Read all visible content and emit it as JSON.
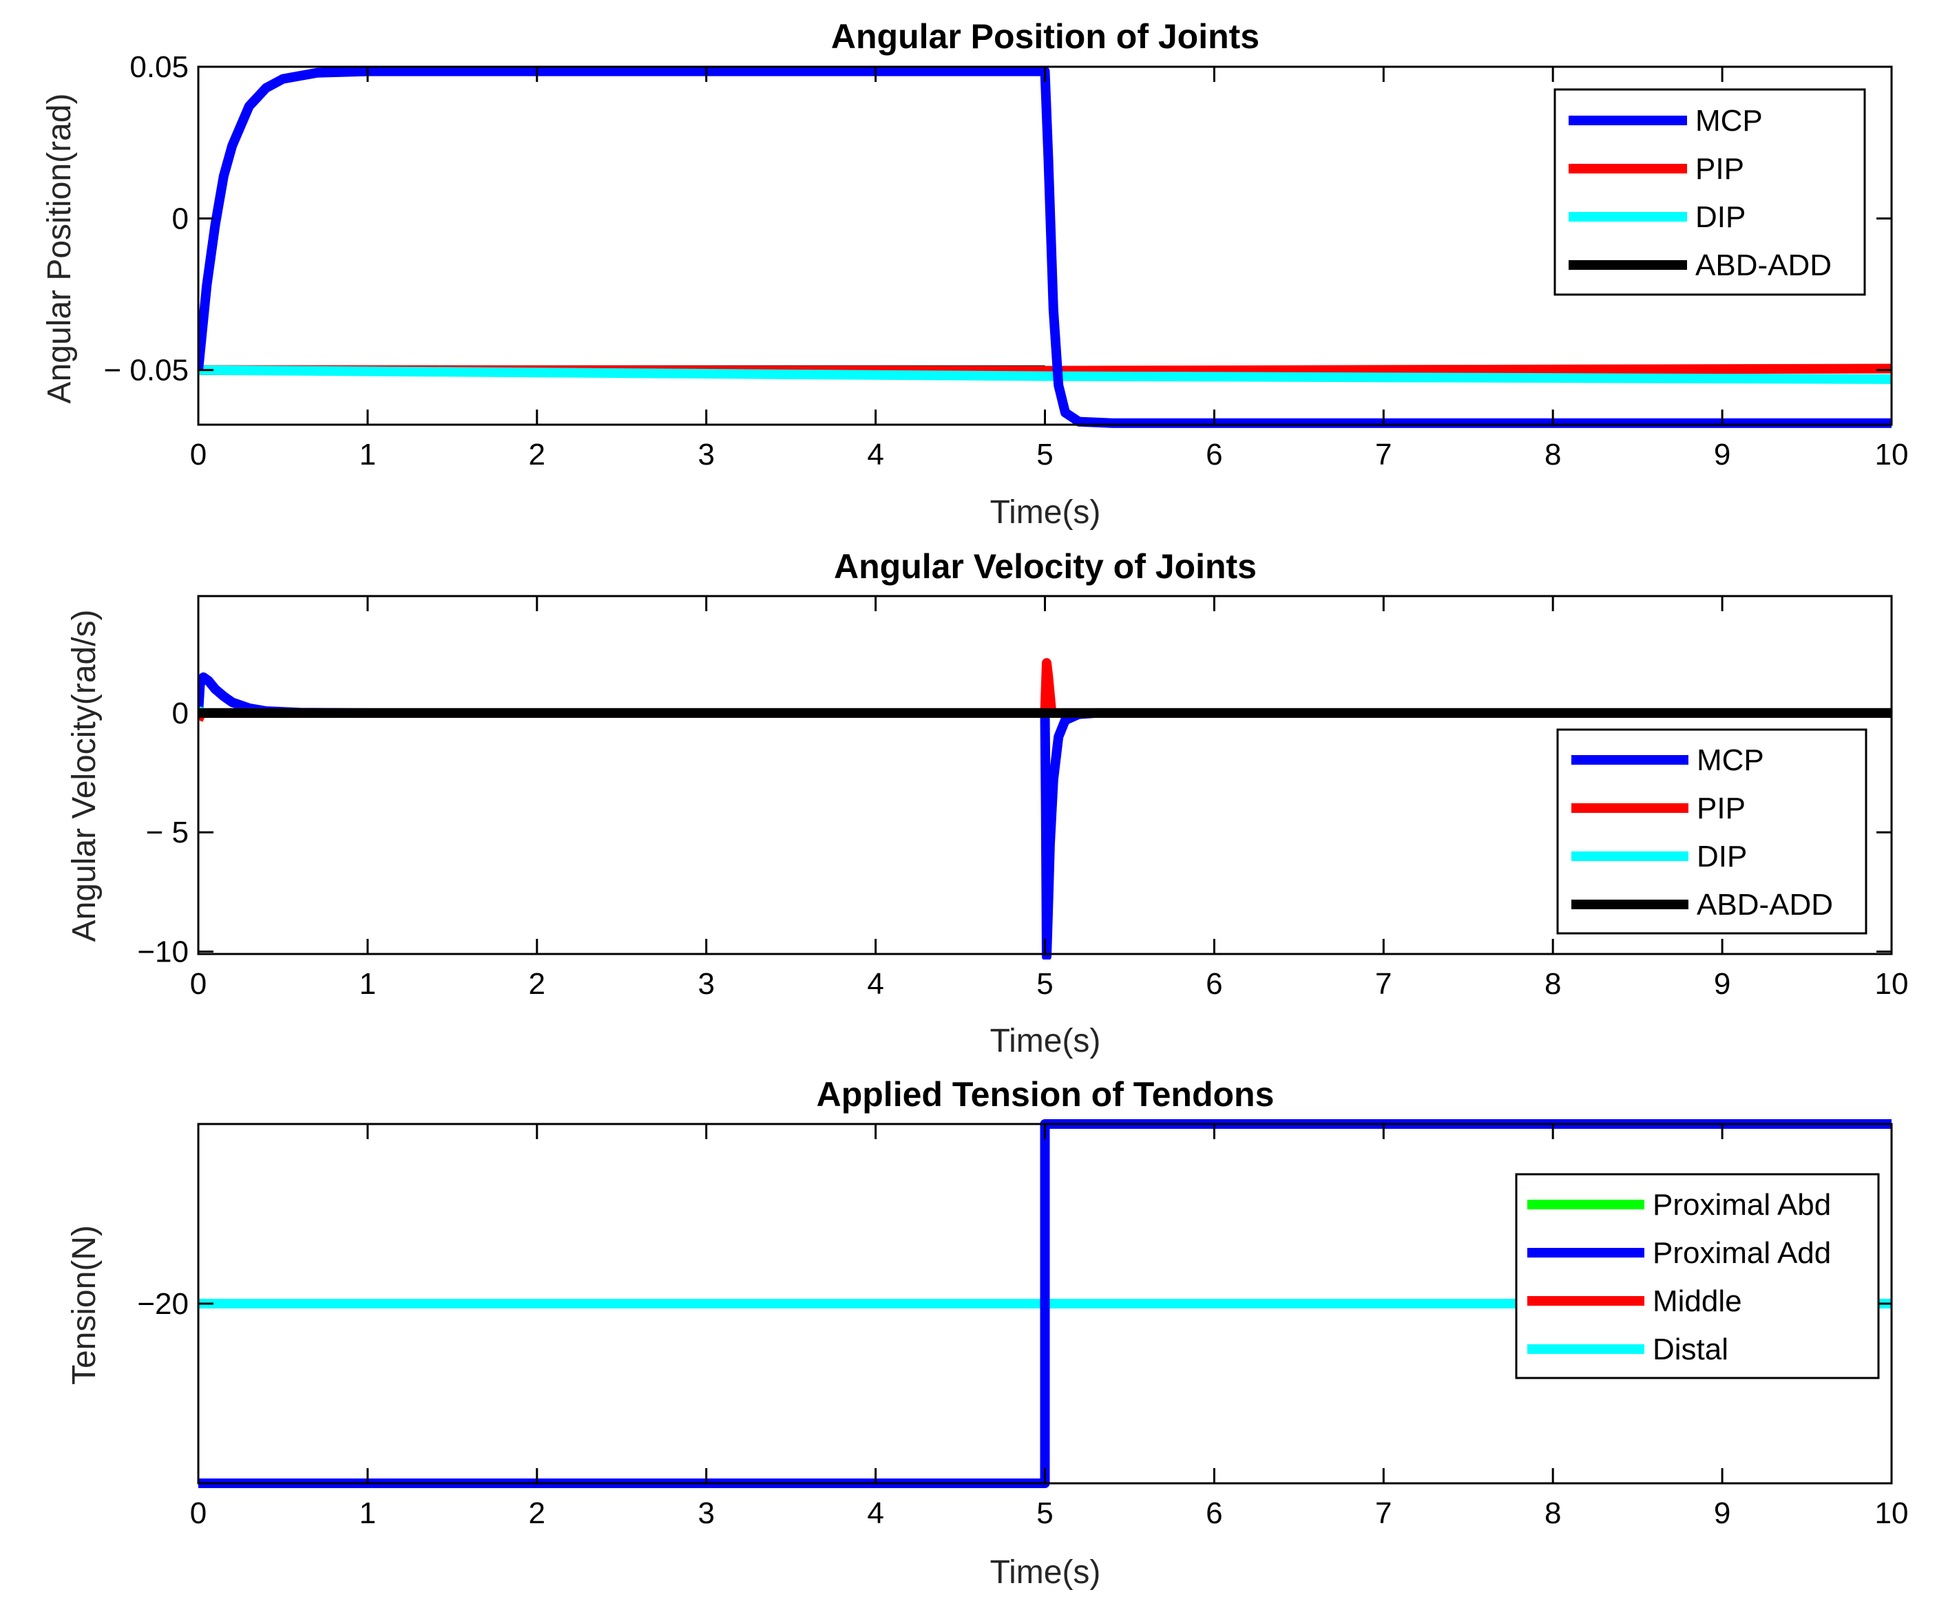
{
  "chart_data": [
    {
      "type": "line",
      "title": "Angular Position of Joints",
      "xlabel": "Time(s)",
      "ylabel": "Angular Position(rad)",
      "xlim": [
        0,
        10
      ],
      "ylim": [
        -0.068,
        0.05
      ],
      "xticks": [
        0,
        1,
        2,
        3,
        4,
        5,
        6,
        7,
        8,
        9,
        10
      ],
      "xtick_labels": [
        "0",
        "1",
        "2",
        "3",
        "4",
        "5",
        "6",
        "7",
        "8",
        "9",
        "10"
      ],
      "yticks": [
        0.05,
        0,
        -0.05
      ],
      "ytick_labels": [
        "0.05",
        "0",
        "− 0.05"
      ],
      "grid": false,
      "legend_position": "top-right",
      "legend": [
        "MCP",
        "PIP",
        "DIP",
        "ABD-ADD"
      ],
      "series": [
        {
          "name": "MCP",
          "color": "#0000ff",
          "x": [
            0,
            0.05,
            0.1,
            0.15,
            0.2,
            0.3,
            0.4,
            0.5,
            0.7,
            1.0,
            5.0,
            5.02,
            5.05,
            5.08,
            5.12,
            5.2,
            5.4,
            10
          ],
          "y": [
            -0.05,
            -0.022,
            -0.002,
            0.014,
            0.024,
            0.037,
            0.043,
            0.046,
            0.048,
            0.0485,
            0.0485,
            0.02,
            -0.03,
            -0.055,
            -0.064,
            -0.067,
            -0.0675,
            -0.0675
          ]
        },
        {
          "name": "PIP",
          "color": "#ff0000",
          "x": [
            0,
            5.0,
            10
          ],
          "y": [
            -0.05,
            -0.0502,
            -0.0495
          ]
        },
        {
          "name": "DIP",
          "color": "#00ffff",
          "x": [
            0,
            5.0,
            10
          ],
          "y": [
            -0.05,
            -0.052,
            -0.053
          ]
        },
        {
          "name": "ABD-ADD",
          "color": "#000000",
          "x": [
            0,
            5.0
          ],
          "y": [
            -0.05,
            -0.05
          ]
        }
      ]
    },
    {
      "type": "line",
      "title": "Angular Velocity of Joints",
      "xlabel": "Time(s)",
      "ylabel": "Angular Velocity(rad/s)",
      "xlim": [
        0,
        10
      ],
      "ylim": [
        -10.1,
        4.9
      ],
      "xticks": [
        0,
        1,
        2,
        3,
        4,
        5,
        6,
        7,
        8,
        9,
        10
      ],
      "xtick_labels": [
        "0",
        "1",
        "2",
        "3",
        "4",
        "5",
        "6",
        "7",
        "8",
        "9",
        "10"
      ],
      "yticks": [
        0,
        -5,
        -10
      ],
      "ytick_labels": [
        "0",
        "− 5",
        "−10"
      ],
      "grid": false,
      "legend_position": "bottom-right",
      "legend": [
        "MCP",
        "PIP",
        "DIP",
        "ABD-ADD"
      ],
      "series": [
        {
          "name": "MCP",
          "color": "#0000ff",
          "x": [
            0,
            0.01,
            0.03,
            0.06,
            0.1,
            0.15,
            0.2,
            0.3,
            0.4,
            0.6,
            1.0,
            5.0,
            5.005,
            5.01,
            5.02,
            5.03,
            5.05,
            5.08,
            5.12,
            5.2,
            5.3,
            10
          ],
          "y": [
            0,
            1.2,
            1.5,
            1.35,
            1.0,
            0.7,
            0.45,
            0.2,
            0.08,
            0.02,
            0,
            0,
            -4,
            -10.2,
            -8,
            -5.5,
            -2.8,
            -1.0,
            -0.3,
            -0.05,
            0,
            0
          ]
        },
        {
          "name": "PIP",
          "color": "#ff0000",
          "x": [
            0,
            0.01,
            0.03,
            5.0,
            5.01,
            5.02,
            5.04,
            10
          ],
          "y": [
            -0.3,
            -0.1,
            0,
            0,
            2.1,
            1.5,
            0,
            0
          ]
        },
        {
          "name": "DIP",
          "color": "#00ffff",
          "x": [
            0,
            0.03,
            5.0,
            5.02,
            5.05,
            10
          ],
          "y": [
            0.1,
            0,
            0,
            0.35,
            0,
            0
          ]
        },
        {
          "name": "ABD-ADD",
          "color": "#000000",
          "x": [
            0,
            10
          ],
          "y": [
            0,
            0
          ]
        }
      ]
    },
    {
      "type": "line",
      "title": "Applied Tension of Tendons",
      "xlabel": "Time(s)",
      "ylabel": "Tension(N)",
      "xlim": [
        0,
        10
      ],
      "ylim": [
        -35,
        -5
      ],
      "xticks": [
        0,
        1,
        2,
        3,
        4,
        5,
        6,
        7,
        8,
        9,
        10
      ],
      "xtick_labels": [
        "0",
        "1",
        "2",
        "3",
        "4",
        "5",
        "6",
        "7",
        "8",
        "9",
        "10"
      ],
      "yticks": [
        -20
      ],
      "ytick_labels": [
        "−20"
      ],
      "grid": false,
      "legend_position": "right",
      "legend": [
        "Proximal Abd",
        "Proximal Add",
        "Middle",
        "Distal"
      ],
      "series": [
        {
          "name": "Proximal Abd",
          "color": "#00ff00",
          "x": [],
          "y": []
        },
        {
          "name": "Proximal Add",
          "color": "#0000ff",
          "x": [
            0,
            5.0,
            5.0,
            10
          ],
          "y": [
            -35,
            -35,
            -5,
            -5
          ]
        },
        {
          "name": "Middle",
          "color": "#ff0000",
          "x": [],
          "y": []
        },
        {
          "name": "Distal",
          "color": "#00ffff",
          "x": [
            0,
            10
          ],
          "y": [
            -20,
            -20
          ]
        }
      ]
    }
  ]
}
